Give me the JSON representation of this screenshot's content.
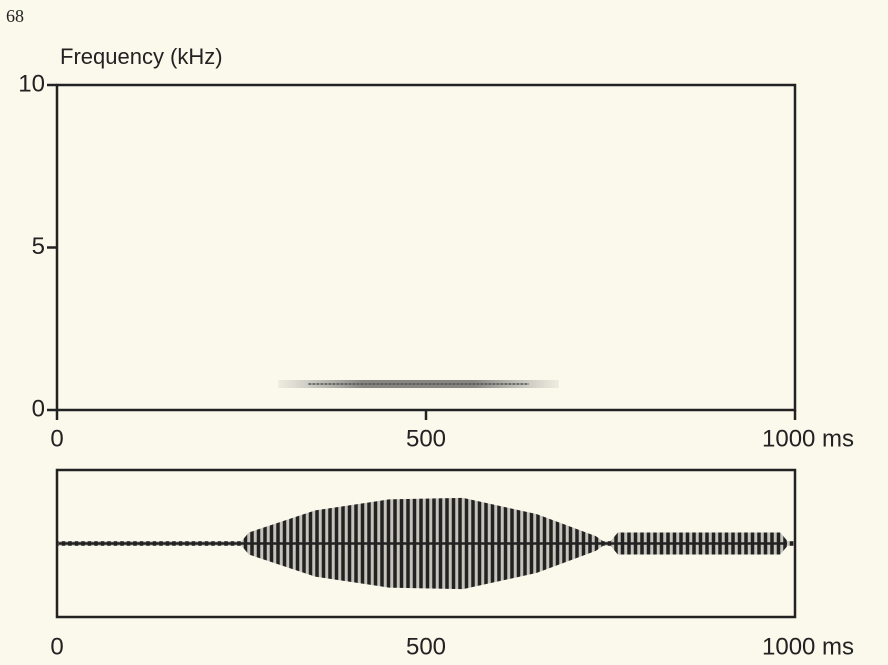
{
  "page_number": "68",
  "chart_data": [
    {
      "type": "spectrogram",
      "y_label": "Frequency (kHz)",
      "xlim": [
        0,
        1000
      ],
      "xticks": [
        0,
        500,
        {
          "value": 1000,
          "label": "1000 ms"
        }
      ],
      "ylim": [
        0,
        10
      ],
      "yticks": [
        0,
        5,
        10
      ],
      "band": {
        "start": 300,
        "end": 680,
        "frequency": 0.8
      },
      "color": "#555555"
    },
    {
      "type": "waveform",
      "xlim": [
        0,
        1000
      ],
      "xticks": [
        0,
        500,
        {
          "value": 1000,
          "label": "1000 ms"
        }
      ],
      "ylim": [
        -1,
        1
      ],
      "x": [
        0,
        250,
        260,
        350,
        450,
        550,
        650,
        730,
        740,
        750,
        760,
        980,
        990,
        1000
      ],
      "values": [
        0.03,
        0.03,
        0.15,
        0.45,
        0.6,
        0.62,
        0.4,
        0.1,
        0.03,
        0.03,
        0.15,
        0.15,
        0.03,
        0.03
      ],
      "color": "#222222"
    }
  ]
}
